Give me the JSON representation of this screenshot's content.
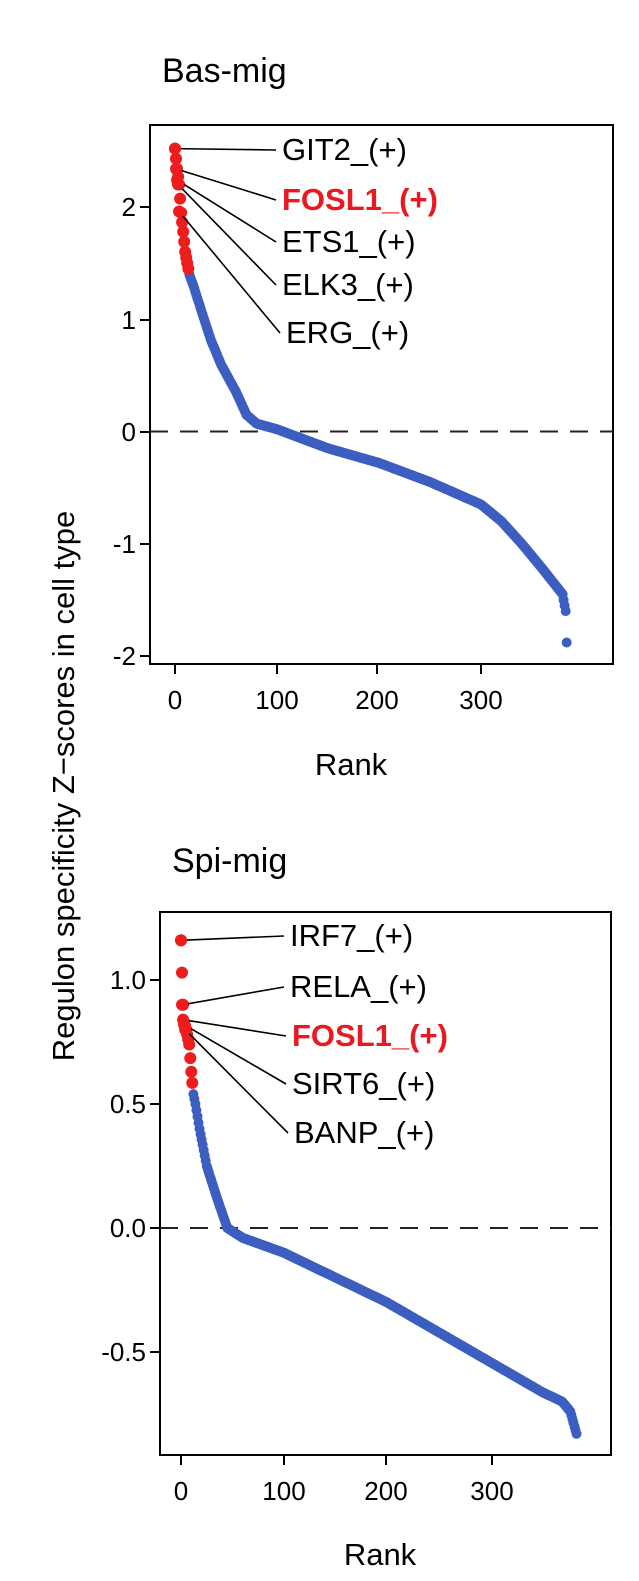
{
  "ylabel": "Regulon specificity Z−scores in cell type",
  "colors": {
    "background": "#0000",
    "normal": "#3c5ec0",
    "highlight": "#ee1d1d",
    "axis": "#000000"
  },
  "chart_data": [
    {
      "type": "scatter",
      "title": "Bas-mig",
      "xlabel": "Rank",
      "xlim": [
        -3,
        385
      ],
      "ylim": [
        -2.05,
        2.7
      ],
      "xticks": [
        "0",
        "100",
        "200",
        "300"
      ],
      "yticks": [
        "-2",
        "-1",
        "0",
        "1",
        "2"
      ],
      "hline": 0,
      "n_points": 385,
      "curve": [
        [
          0,
          2.52
        ],
        [
          2,
          2.34
        ],
        [
          4,
          2.2
        ],
        [
          6,
          1.95
        ],
        [
          8,
          1.78
        ],
        [
          10,
          1.6
        ],
        [
          14,
          1.4
        ],
        [
          18,
          1.3
        ],
        [
          25,
          1.1
        ],
        [
          35,
          0.82
        ],
        [
          45,
          0.6
        ],
        [
          60,
          0.35
        ],
        [
          70,
          0.15
        ],
        [
          80,
          0.07
        ],
        [
          100,
          0.02
        ],
        [
          150,
          -0.15
        ],
        [
          200,
          -0.28
        ],
        [
          250,
          -0.45
        ],
        [
          300,
          -0.65
        ],
        [
          320,
          -0.8
        ],
        [
          340,
          -1.0
        ],
        [
          360,
          -1.22
        ],
        [
          380,
          -1.45
        ],
        [
          383,
          -1.6
        ],
        [
          384,
          -1.88
        ]
      ],
      "highlight_count": 14,
      "labeled_points": [
        {
          "label": "GIT2_(+)",
          "x": 0,
          "y": 2.52,
          "highlight": false
        },
        {
          "label": "FOSL1_(+)",
          "x": 1,
          "y": 2.34,
          "highlight": true
        },
        {
          "label": "ETS1_(+)",
          "x": 2,
          "y": 2.24,
          "highlight": false
        },
        {
          "label": "ELK3_(+)",
          "x": 3,
          "y": 2.2,
          "highlight": false
        },
        {
          "label": "ERG_(+)",
          "x": 4,
          "y": 1.96,
          "highlight": false
        }
      ]
    },
    {
      "type": "scatter",
      "title": "Spi-mig",
      "xlabel": "Rank",
      "xlim": [
        -20,
        395
      ],
      "ylim": [
        -0.9,
        1.22
      ],
      "xticks": [
        "0",
        "100",
        "200",
        "300"
      ],
      "yticks": [
        "-0.5",
        "0.0",
        "0.5",
        "1.0"
      ],
      "hline": 0,
      "n_points": 385,
      "curve": [
        [
          0,
          1.16
        ],
        [
          2,
          0.9
        ],
        [
          3,
          0.83
        ],
        [
          5,
          0.8
        ],
        [
          8,
          0.74
        ],
        [
          10,
          0.63
        ],
        [
          12,
          0.54
        ],
        [
          14,
          0.5
        ],
        [
          18,
          0.4
        ],
        [
          25,
          0.25
        ],
        [
          35,
          0.12
        ],
        [
          45,
          0.0
        ],
        [
          60,
          -0.04
        ],
        [
          100,
          -0.1
        ],
        [
          150,
          -0.2
        ],
        [
          200,
          -0.3
        ],
        [
          250,
          -0.42
        ],
        [
          300,
          -0.54
        ],
        [
          350,
          -0.66
        ],
        [
          370,
          -0.7
        ],
        [
          378,
          -0.74
        ],
        [
          382,
          -0.8
        ],
        [
          384,
          -0.83
        ]
      ],
      "highlight_count": 12,
      "labeled_points": [
        {
          "label": "IRF7_(+)",
          "x": 0,
          "y": 1.16,
          "highlight": false
        },
        {
          "label": "RELA_(+)",
          "x": 1,
          "y": 0.9,
          "highlight": false
        },
        {
          "label": "FOSL1_(+)",
          "x": 2,
          "y": 0.84,
          "highlight": true
        },
        {
          "label": "SIRT6_(+)",
          "x": 3,
          "y": 0.82,
          "highlight": false
        },
        {
          "label": "BANP_(+)",
          "x": 4,
          "y": 0.8,
          "highlight": false
        }
      ]
    }
  ]
}
